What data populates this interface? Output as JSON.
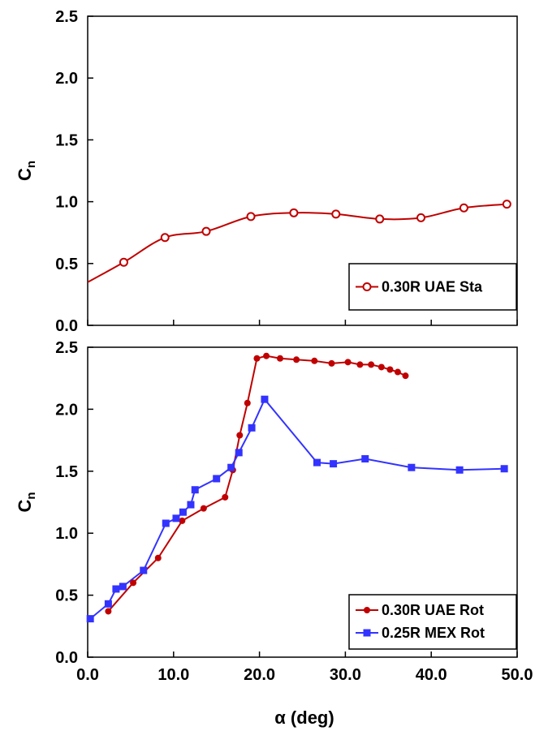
{
  "chart_data": [
    {
      "type": "line",
      "title": "",
      "xlabel": "",
      "ylabel": "C",
      "ylabel_sub": "n",
      "xlim": [
        0,
        50
      ],
      "ylim": [
        0,
        2.5
      ],
      "yticks": [
        "0.0",
        "0.5",
        "1.0",
        "1.5",
        "2.0",
        "2.5"
      ],
      "grid": false,
      "legend_position": "bottom-right",
      "series": [
        {
          "name": "0.30R UAE Sta",
          "color": "#c00000",
          "marker": "open-circle",
          "smooth": true,
          "x": [
            -0.5,
            4.2,
            9.0,
            13.8,
            19.0,
            24.0,
            28.9,
            34.0,
            38.8,
            43.8,
            48.8
          ],
          "y": [
            0.33,
            0.51,
            0.71,
            0.76,
            0.88,
            0.91,
            0.9,
            0.86,
            0.87,
            0.95,
            0.98
          ]
        }
      ]
    },
    {
      "type": "line",
      "title": "",
      "xlabel": "α (deg)",
      "ylabel": "C",
      "ylabel_sub": "n",
      "xlim": [
        0,
        50
      ],
      "ylim": [
        0,
        2.5
      ],
      "xticks": [
        "0.0",
        "10.0",
        "20.0",
        "30.0",
        "40.0",
        "50.0"
      ],
      "yticks": [
        "0.0",
        "0.5",
        "1.0",
        "1.5",
        "2.0",
        "2.5"
      ],
      "grid": false,
      "legend_position": "bottom-right",
      "series": [
        {
          "name": "0.30R UAE Rot",
          "color": "#c00000",
          "marker": "filled-circle",
          "x": [
            2.4,
            5.3,
            8.2,
            11.0,
            13.5,
            16.0,
            16.9,
            17.7,
            18.6,
            19.7,
            20.8,
            22.4,
            24.3,
            26.4,
            28.4,
            30.3,
            31.7,
            33.0,
            34.2,
            35.2,
            36.1,
            37.0
          ],
          "y": [
            0.37,
            0.6,
            0.8,
            1.1,
            1.2,
            1.29,
            1.51,
            1.79,
            2.05,
            2.41,
            2.43,
            2.41,
            2.4,
            2.39,
            2.37,
            2.38,
            2.36,
            2.36,
            2.34,
            2.32,
            2.3,
            2.27
          ]
        },
        {
          "name": "0.25R MEX Rot",
          "color": "#3333ff",
          "marker": "filled-square",
          "x": [
            0.3,
            2.4,
            3.3,
            4.1,
            6.5,
            9.1,
            10.3,
            11.1,
            12.0,
            12.5,
            15.0,
            16.7,
            17.6,
            19.1,
            20.6,
            26.7,
            28.6,
            32.3,
            37.7,
            43.3,
            48.5
          ],
          "y": [
            0.31,
            0.43,
            0.55,
            0.57,
            0.7,
            1.08,
            1.12,
            1.17,
            1.23,
            1.35,
            1.44,
            1.53,
            1.65,
            1.85,
            2.08,
            1.57,
            1.56,
            1.6,
            1.53,
            1.51,
            1.52
          ]
        }
      ]
    }
  ]
}
